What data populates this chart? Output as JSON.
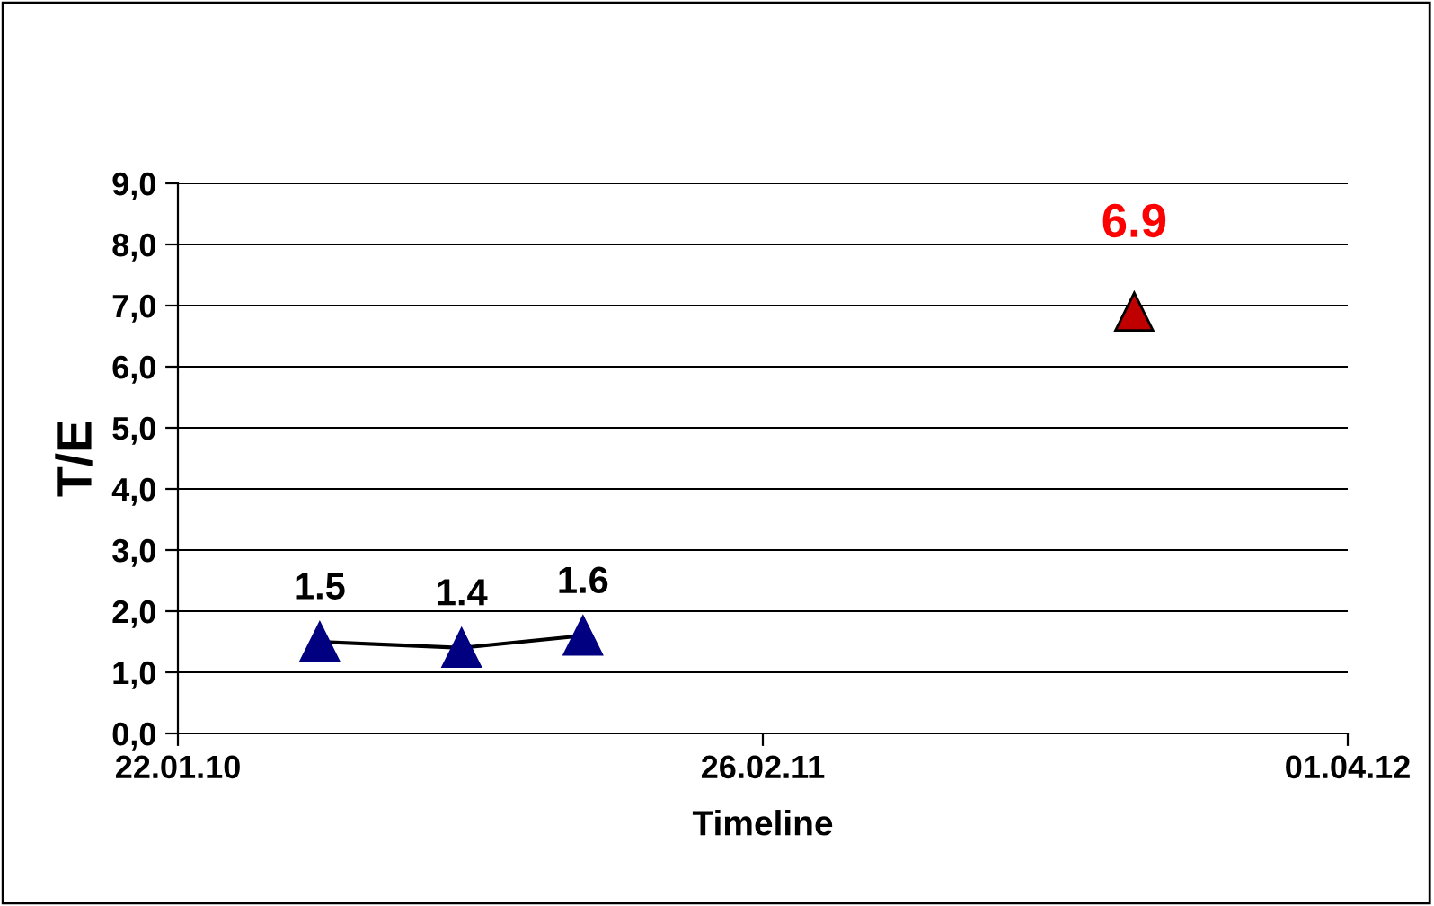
{
  "chart_data": {
    "type": "line",
    "xlabel": "Timeline",
    "ylabel": "T/E",
    "xlim": [
      "2010-01-22",
      "2012-04-01"
    ],
    "xticks": [
      {
        "value": "2010-01-22",
        "label": "22.01.10"
      },
      {
        "value": "2011-02-26",
        "label": "26.02.11"
      },
      {
        "value": "2012-04-01",
        "label": "01.04.12"
      }
    ],
    "ylim": [
      0,
      9
    ],
    "yticks": [
      {
        "value": 0,
        "label": "0,0"
      },
      {
        "value": 1,
        "label": "1,0"
      },
      {
        "value": 2,
        "label": "2,0"
      },
      {
        "value": 3,
        "label": "3,0"
      },
      {
        "value": 4,
        "label": "4,0"
      },
      {
        "value": 5,
        "label": "5,0"
      },
      {
        "value": 6,
        "label": "6,0"
      },
      {
        "value": 7,
        "label": "7,0"
      },
      {
        "value": 8,
        "label": "8,0"
      },
      {
        "value": 9,
        "label": "9,0"
      }
    ],
    "grid": "y",
    "marker": "triangle",
    "data_labels": true,
    "series": [
      {
        "color": "#000080",
        "x": [
          "2010-04-29",
          "2010-08-04",
          "2010-10-26"
        ],
        "values": [
          1.5,
          1.4,
          1.6
        ]
      },
      {
        "type": "scatter",
        "color": "#c00000",
        "x": [
          "2011-11-07"
        ],
        "values": [
          6.9
        ]
      }
    ]
  }
}
